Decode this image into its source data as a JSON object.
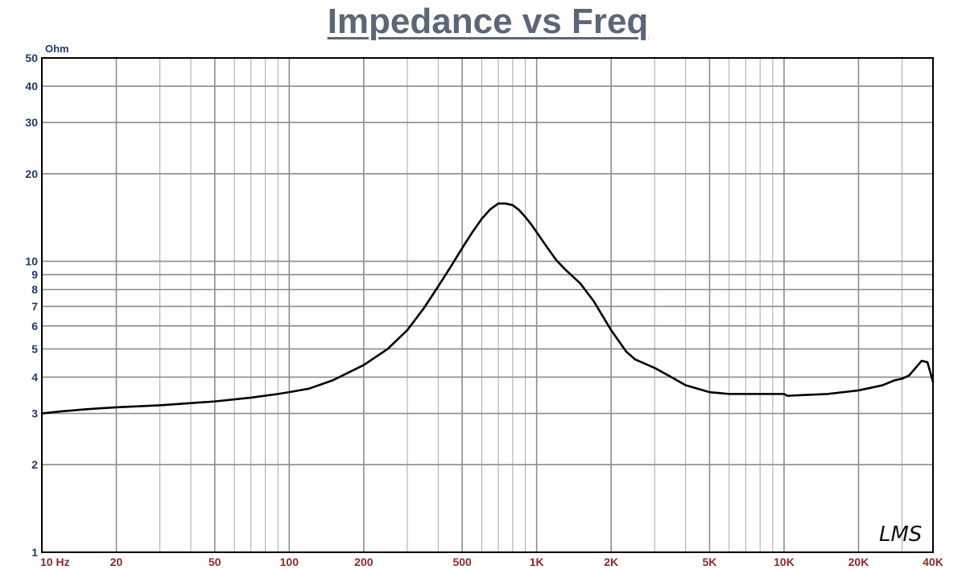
{
  "chart_data": {
    "type": "line",
    "title": "Impedance vs Freq",
    "ylabel": "Ohm",
    "xscale": "log",
    "yscale": "log",
    "xlim": [
      10,
      40000
    ],
    "ylim": [
      1,
      50
    ],
    "grid": true,
    "x_tick_labels": [
      {
        "value": 10,
        "label": "10  Hz"
      },
      {
        "value": 20,
        "label": "20"
      },
      {
        "value": 50,
        "label": "50"
      },
      {
        "value": 100,
        "label": "100"
      },
      {
        "value": 200,
        "label": "200"
      },
      {
        "value": 500,
        "label": "500"
      },
      {
        "value": 1000,
        "label": "1K"
      },
      {
        "value": 2000,
        "label": "2K"
      },
      {
        "value": 5000,
        "label": "5K"
      },
      {
        "value": 10000,
        "label": "10K"
      },
      {
        "value": 20000,
        "label": "20K"
      },
      {
        "value": 40000,
        "label": "40K"
      }
    ],
    "y_tick_labels": [
      {
        "value": 50,
        "label": "50"
      },
      {
        "value": 40,
        "label": "40"
      },
      {
        "value": 30,
        "label": "30"
      },
      {
        "value": 20,
        "label": "20"
      },
      {
        "value": 10,
        "label": "10"
      },
      {
        "value": 9,
        "label": "9"
      },
      {
        "value": 8,
        "label": "8"
      },
      {
        "value": 7,
        "label": "7"
      },
      {
        "value": 6,
        "label": "6"
      },
      {
        "value": 5,
        "label": "5"
      },
      {
        "value": 4,
        "label": "4"
      },
      {
        "value": 3,
        "label": "3"
      },
      {
        "value": 2,
        "label": "2"
      },
      {
        "value": 1,
        "label": "1"
      }
    ],
    "series": [
      {
        "x": [
          10,
          12,
          15,
          20,
          30,
          50,
          70,
          90,
          100,
          120,
          150,
          200,
          250,
          300,
          350,
          400,
          450,
          500,
          550,
          600,
          650,
          700,
          750,
          800,
          850,
          900,
          950,
          1000,
          1100,
          1200,
          1300,
          1500,
          1700,
          2000,
          2300,
          2500,
          3000,
          3500,
          4000,
          5000,
          6000,
          7000,
          8000,
          9000,
          10000,
          10300,
          12000,
          15000,
          20000,
          25000,
          28000,
          30000,
          32000,
          34000,
          36000,
          38000,
          40000
        ],
        "y": [
          3.0,
          3.05,
          3.1,
          3.15,
          3.2,
          3.3,
          3.4,
          3.5,
          3.55,
          3.65,
          3.9,
          4.4,
          5.0,
          5.8,
          6.9,
          8.2,
          9.6,
          11.1,
          12.6,
          14.0,
          15.1,
          15.8,
          15.8,
          15.6,
          15.0,
          14.2,
          13.4,
          12.6,
          11.2,
          10.1,
          9.4,
          8.4,
          7.3,
          5.8,
          4.9,
          4.6,
          4.3,
          4.0,
          3.75,
          3.55,
          3.5,
          3.5,
          3.5,
          3.5,
          3.5,
          3.45,
          3.47,
          3.5,
          3.6,
          3.75,
          3.9,
          3.95,
          4.05,
          4.3,
          4.55,
          4.5,
          3.85
        ]
      }
    ]
  },
  "watermark": "LMS"
}
